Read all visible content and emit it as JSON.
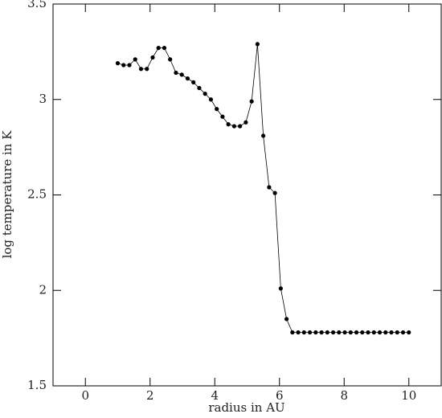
{
  "chart_data": {
    "type": "line",
    "x_label": "radius in AU",
    "y_label": "log temperature in K",
    "x": [
      1.0,
      1.18,
      1.36,
      1.54,
      1.72,
      1.9,
      2.08,
      2.26,
      2.44,
      2.62,
      2.8,
      2.98,
      3.16,
      3.34,
      3.52,
      3.7,
      3.88,
      4.06,
      4.24,
      4.42,
      4.6,
      4.78,
      4.96,
      5.14,
      5.32,
      5.5,
      5.68,
      5.86,
      6.04,
      6.22,
      6.4,
      6.58,
      6.76,
      6.94,
      7.12,
      7.3,
      7.48,
      7.66,
      7.84,
      8.02,
      8.2,
      8.38,
      8.56,
      8.74,
      8.92,
      9.1,
      9.28,
      9.46,
      9.64,
      9.82,
      10.0
    ],
    "series": [
      {
        "color": "#000000",
        "values": [
          3.19,
          3.18,
          3.18,
          3.21,
          3.16,
          3.16,
          3.22,
          3.27,
          3.27,
          3.21,
          3.14,
          3.13,
          3.11,
          3.09,
          3.06,
          3.03,
          3.0,
          2.95,
          2.91,
          2.87,
          2.86,
          2.86,
          2.88,
          2.99,
          3.29,
          2.81,
          2.54,
          2.51,
          2.01,
          1.85,
          1.78,
          1.78,
          1.78,
          1.78,
          1.78,
          1.78,
          1.78,
          1.78,
          1.78,
          1.78,
          1.78,
          1.78,
          1.78,
          1.78,
          1.78,
          1.78,
          1.78,
          1.78,
          1.78,
          1.78,
          1.78
        ]
      }
    ],
    "xlim": [
      -1,
      11
    ],
    "xticks": [
      0,
      2,
      4,
      6,
      8,
      10
    ],
    "ylim": [
      1.5,
      3.5
    ],
    "yticks": [
      1.5,
      2,
      2.5,
      3,
      3.5
    ]
  }
}
